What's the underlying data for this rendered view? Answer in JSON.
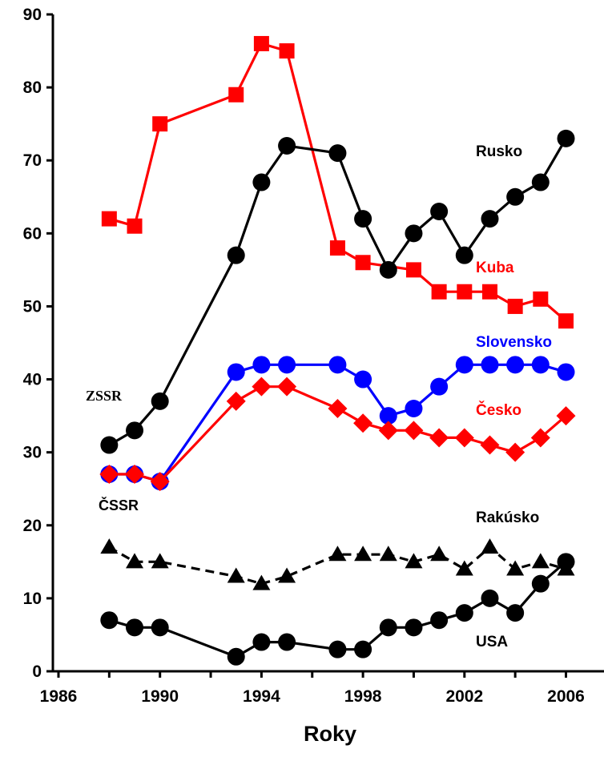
{
  "chart_data": {
    "type": "line",
    "xlabel": "Roky",
    "ylabel": "",
    "xlim": [
      1986,
      2007
    ],
    "ylim": [
      0,
      90
    ],
    "x_ticks": [
      "1986",
      "1990",
      "1994",
      "1998",
      "2002",
      "2006"
    ],
    "y_ticks": [
      "0",
      "10",
      "20",
      "30",
      "40",
      "50",
      "60",
      "70",
      "80",
      "90"
    ],
    "grid": false,
    "legend": "labels placed next to series",
    "series": [
      {
        "name": "Kuba",
        "color": "#ff0000",
        "marker": "square",
        "line": "solid",
        "x": [
          1988,
          1989,
          1990,
          1993,
          1994,
          1995,
          1997,
          1998,
          2000,
          2001,
          2002,
          2003,
          2004,
          2005,
          2006
        ],
        "y": [
          62,
          61,
          75,
          79,
          86,
          85,
          58,
          56,
          55,
          52,
          52,
          52,
          50,
          51,
          48
        ]
      },
      {
        "name": "Rusko",
        "color": "#000000",
        "marker": "circle",
        "line": "solid",
        "x": [
          1988,
          1989,
          1990,
          1993,
          1994,
          1995,
          1997,
          1998,
          1999,
          2000,
          2001,
          2002,
          2003,
          2004,
          2005,
          2006
        ],
        "y": [
          31,
          33,
          37,
          57,
          67,
          72,
          71,
          62,
          55,
          60,
          63,
          57,
          62,
          65,
          67,
          73
        ]
      },
      {
        "name": "Slovensko",
        "color": "#0000ff",
        "marker": "circle",
        "line": "solid",
        "x": [
          1988,
          1989,
          1990,
          1993,
          1994,
          1995,
          1997,
          1998,
          1999,
          2000,
          2001,
          2002,
          2003,
          2004,
          2005,
          2006
        ],
        "y": [
          27,
          27,
          26,
          41,
          42,
          42,
          42,
          40,
          35,
          36,
          39,
          42,
          42,
          42,
          42,
          41
        ]
      },
      {
        "name": "Česko",
        "color": "#ff0000",
        "marker": "diamond",
        "line": "solid",
        "x": [
          1988,
          1989,
          1990,
          1993,
          1994,
          1995,
          1997,
          1998,
          1999,
          2000,
          2001,
          2002,
          2003,
          2004,
          2005,
          2006
        ],
        "y": [
          27,
          27,
          26,
          37,
          39,
          39,
          36,
          34,
          33,
          33,
          32,
          32,
          31,
          30,
          32,
          35
        ]
      },
      {
        "name": "Rakúsko",
        "color": "#000000",
        "marker": "triangle",
        "line": "dashed",
        "x": [
          1988,
          1989,
          1990,
          1993,
          1994,
          1995,
          1997,
          1998,
          1999,
          2000,
          2001,
          2002,
          2003,
          2004,
          2005,
          2006
        ],
        "y": [
          17,
          15,
          15,
          13,
          12,
          13,
          16,
          16,
          16,
          15,
          16,
          14,
          17,
          14,
          15,
          14
        ]
      },
      {
        "name": "USA",
        "color": "#000000",
        "marker": "circle",
        "line": "solid",
        "x": [
          1988,
          1989,
          1990,
          1993,
          1994,
          1995,
          1997,
          1998,
          1999,
          2000,
          2001,
          2002,
          2003,
          2004,
          2005,
          2006
        ],
        "y": [
          7,
          6,
          6,
          2,
          4,
          4,
          3,
          3,
          6,
          6,
          7,
          8,
          10,
          8,
          12,
          15
        ]
      }
    ],
    "annotations": [
      {
        "text": "ZSSR"
      },
      {
        "text": "ČSSR"
      }
    ]
  }
}
